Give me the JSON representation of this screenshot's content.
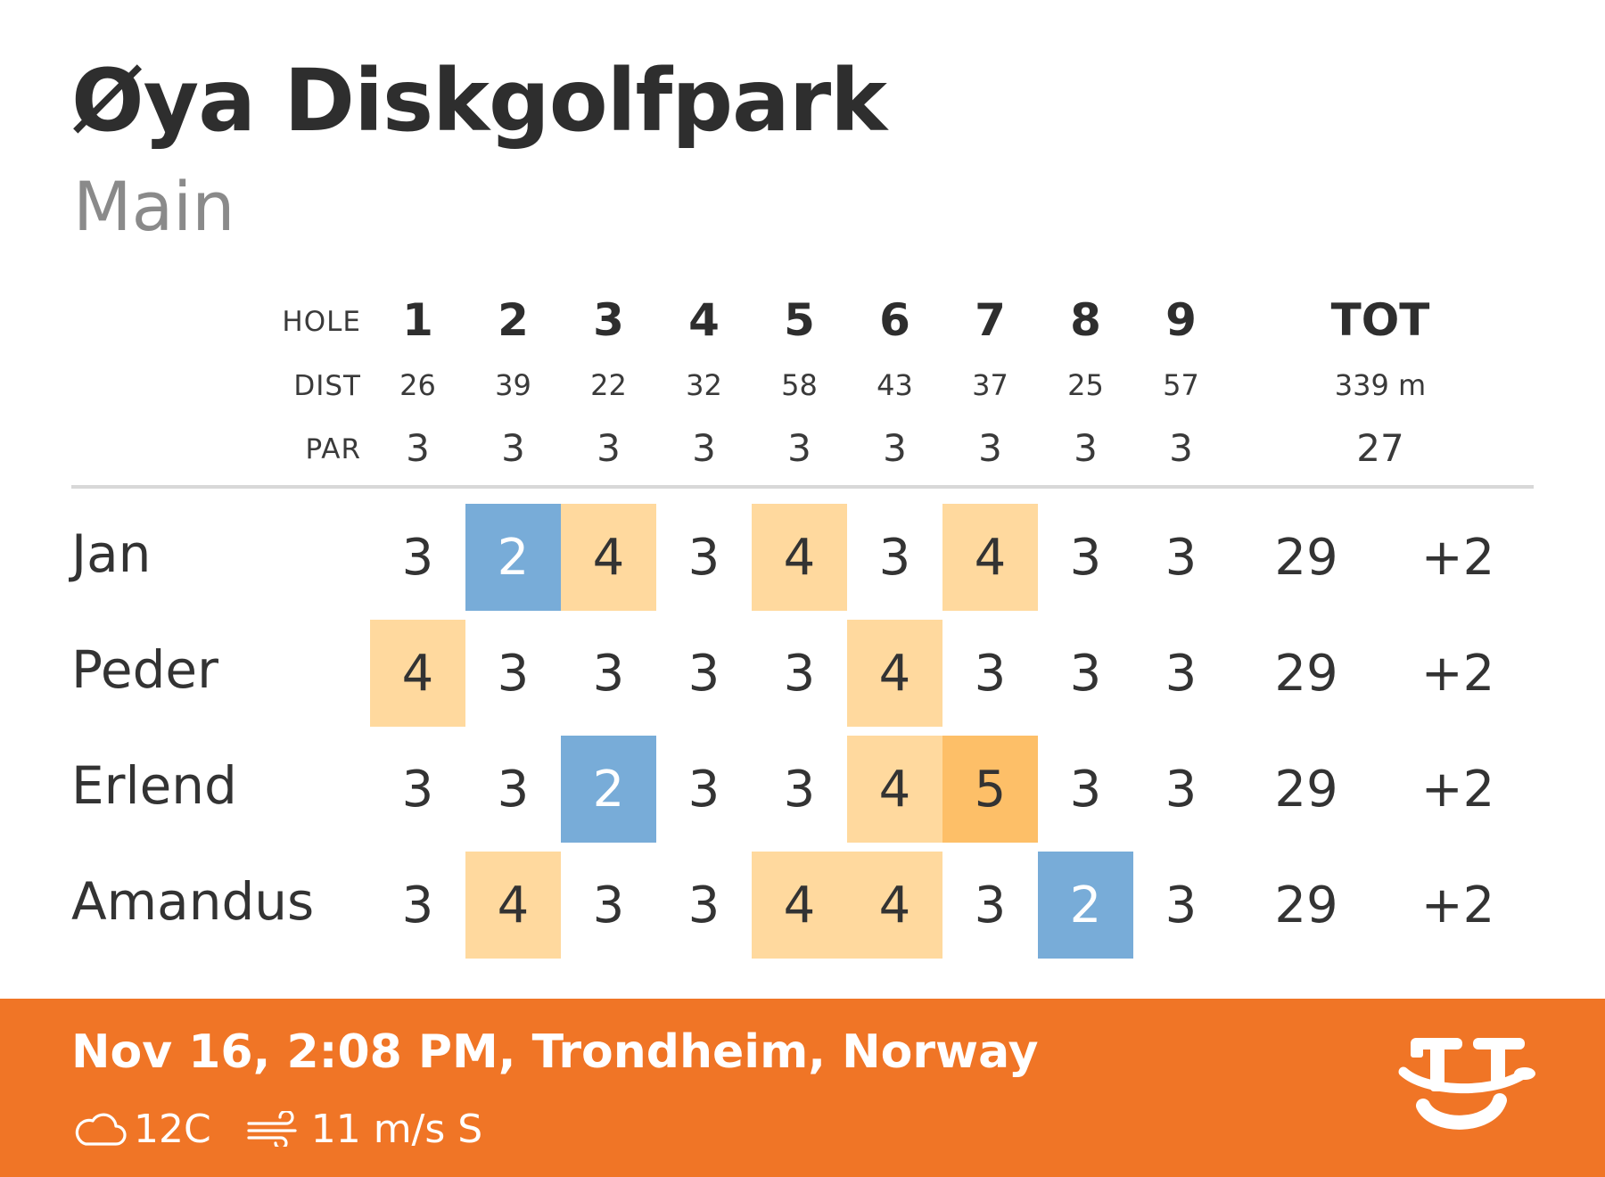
{
  "course": {
    "name": "Øya Diskgolfpark",
    "layout": "Main"
  },
  "header": {
    "hole_label": "HOLE",
    "dist_label": "DIST",
    "par_label": "PAR",
    "tot_label": "TOT",
    "holes": [
      "1",
      "2",
      "3",
      "4",
      "5",
      "6",
      "7",
      "8",
      "9"
    ],
    "dist": [
      "26",
      "39",
      "22",
      "32",
      "58",
      "43",
      "37",
      "25",
      "57"
    ],
    "par": [
      "3",
      "3",
      "3",
      "3",
      "3",
      "3",
      "3",
      "3",
      "3"
    ],
    "tot_dist": "339 m",
    "tot_par": "27"
  },
  "players": [
    {
      "name": "Jan",
      "scores": [
        "3",
        "2",
        "4",
        "3",
        "4",
        "3",
        "4",
        "3",
        "3"
      ],
      "total": "29",
      "diff": "+2"
    },
    {
      "name": "Peder",
      "scores": [
        "4",
        "3",
        "3",
        "3",
        "3",
        "4",
        "3",
        "3",
        "3"
      ],
      "total": "29",
      "diff": "+2"
    },
    {
      "name": "Erlend",
      "scores": [
        "3",
        "3",
        "2",
        "3",
        "3",
        "4",
        "5",
        "3",
        "3"
      ],
      "total": "29",
      "diff": "+2"
    },
    {
      "name": "Amandus",
      "scores": [
        "3",
        "4",
        "3",
        "3",
        "4",
        "4",
        "3",
        "2",
        "3"
      ],
      "total": "29",
      "diff": "+2"
    }
  ],
  "footer": {
    "datetime_location": "Nov 16, 2:08 PM, Trondheim, Norway",
    "temperature": "12C",
    "wind": "11 m/s S",
    "weather_icon": "cloud-icon",
    "wind_icon": "wind-icon",
    "logo_icon": "udisc-logo"
  },
  "colors": {
    "footer_bg": "#f07526",
    "bogey": "#ffd99e",
    "double_bogey": "#fdbf68",
    "birdie": "#78acd8"
  }
}
